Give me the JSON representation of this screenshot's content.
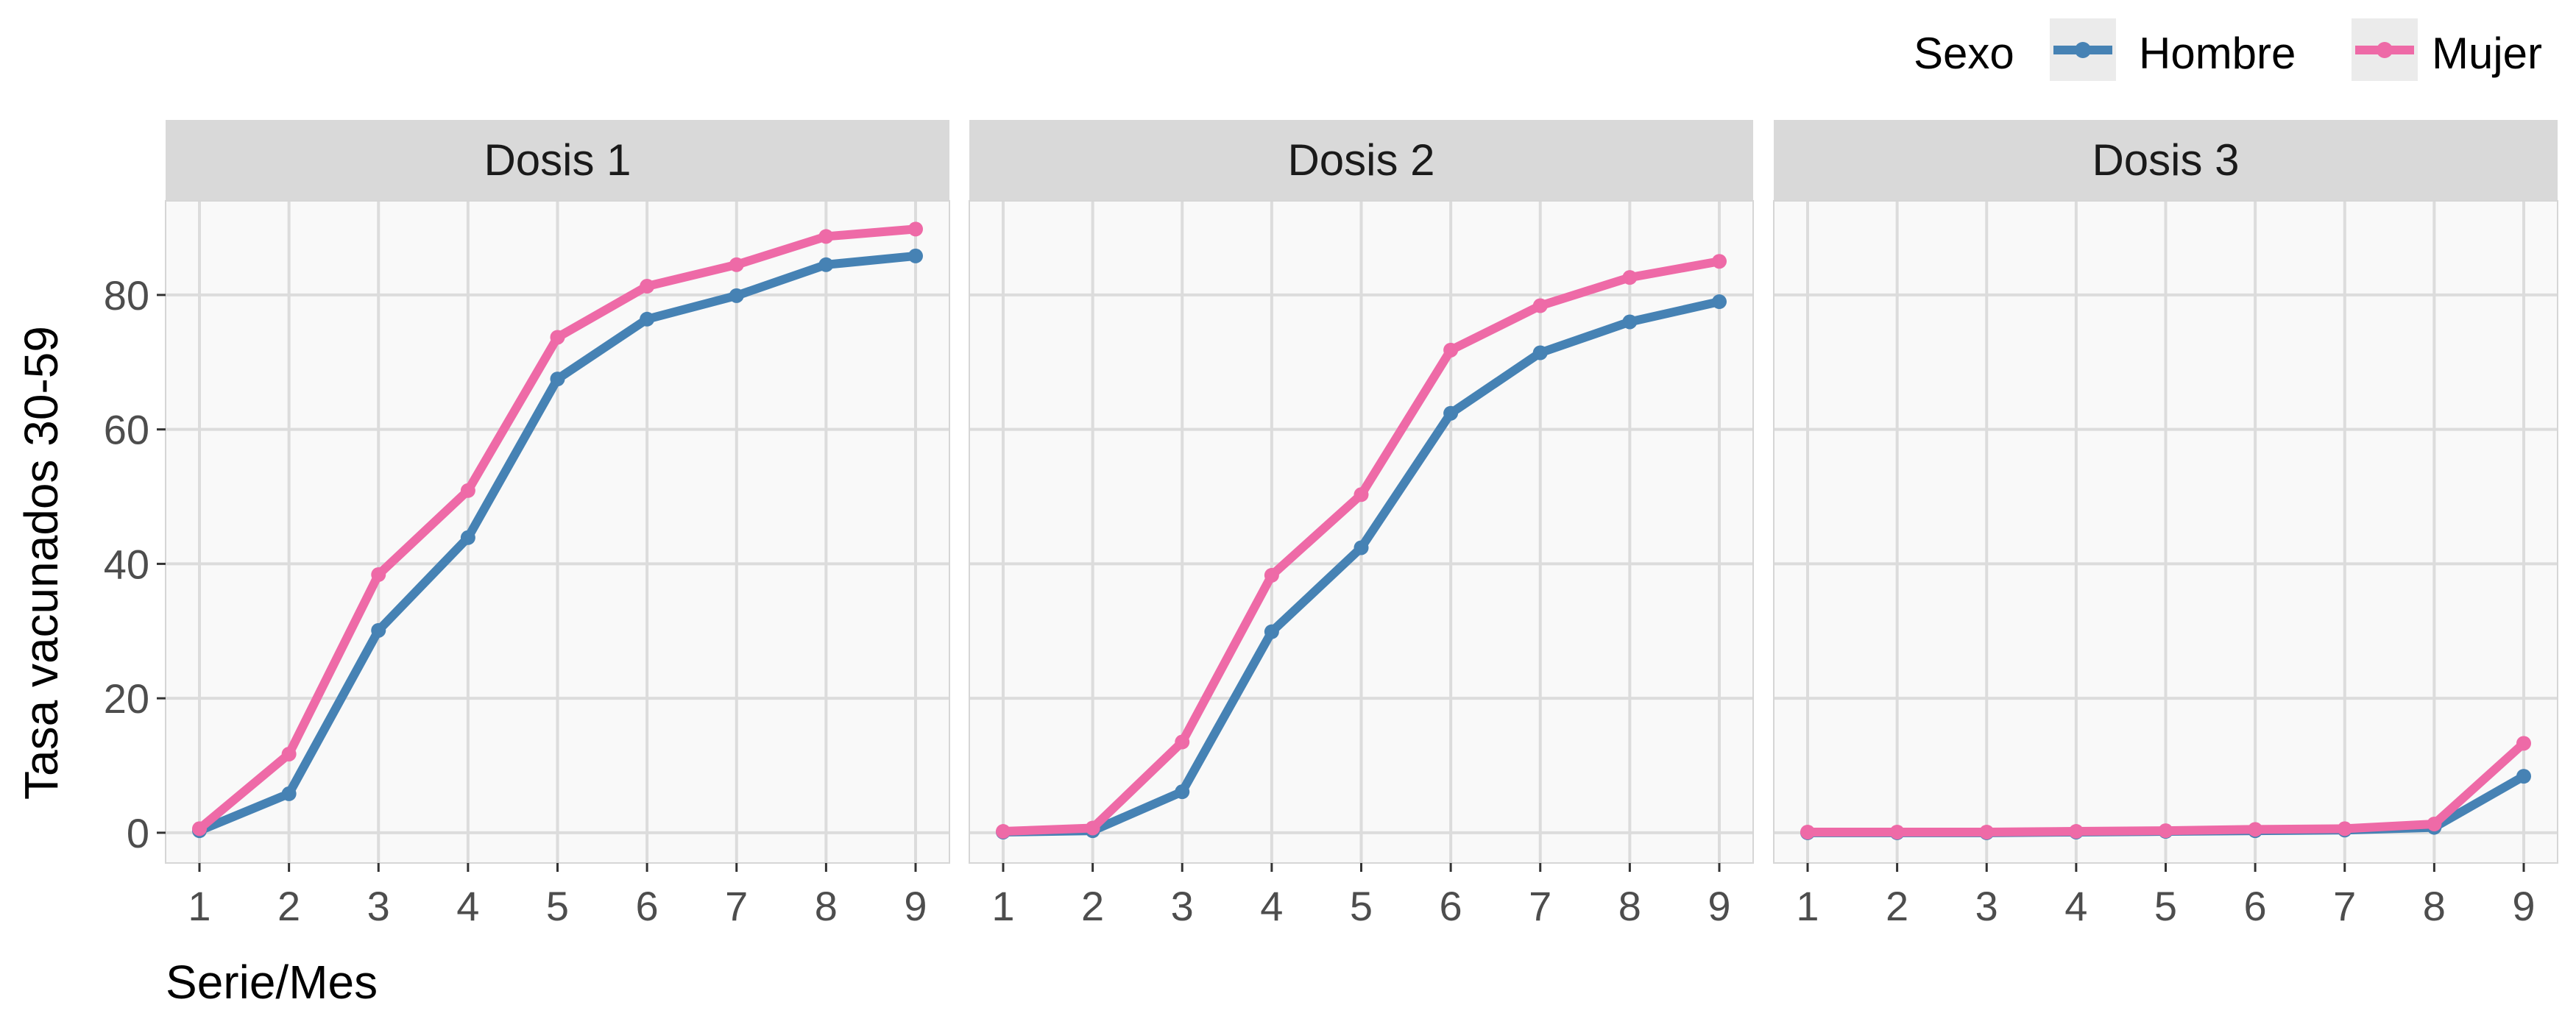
{
  "chart_data": {
    "type": "line",
    "facet_variable": "Dosis",
    "ylabel": "Tasa vacunados 30-59",
    "xlabel": "Serie/Mes",
    "x": [
      1,
      2,
      3,
      4,
      5,
      6,
      7,
      8,
      9
    ],
    "xticks": [
      "1",
      "2",
      "3",
      "4",
      "5",
      "6",
      "7",
      "8",
      "9"
    ],
    "ylim": [
      -4.5,
      94
    ],
    "yticks": [
      0,
      20,
      40,
      60,
      80
    ],
    "ytick_labels": [
      "0",
      "20",
      "40",
      "60",
      "80"
    ],
    "grid": true,
    "legend": {
      "title": "Sexo",
      "position": "top-right",
      "entries": [
        {
          "name": "Hombre",
          "color": "#4682b4"
        },
        {
          "name": "Mujer",
          "color": "#ee6aa7"
        }
      ]
    },
    "panels": [
      {
        "label": "Dosis 1",
        "series": [
          {
            "name": "Hombre",
            "color": "#4682b4",
            "values": [
              0.3,
              5.8,
              30.1,
              43.9,
              67.5,
              76.4,
              79.9,
              84.5,
              85.8
            ]
          },
          {
            "name": "Mujer",
            "color": "#ee6aa7",
            "values": [
              0.6,
              11.7,
              38.4,
              50.9,
              73.7,
              81.3,
              84.5,
              88.7,
              89.8
            ]
          }
        ]
      },
      {
        "label": "Dosis 2",
        "series": [
          {
            "name": "Hombre",
            "color": "#4682b4",
            "values": [
              0.1,
              0.3,
              6.1,
              29.9,
              42.4,
              62.4,
              71.4,
              76.0,
              79.0
            ]
          },
          {
            "name": "Mujer",
            "color": "#ee6aa7",
            "values": [
              0.2,
              0.7,
              13.5,
              38.3,
              50.3,
              71.8,
              78.4,
              82.6,
              85.0
            ]
          }
        ]
      },
      {
        "label": "Dosis 3",
        "series": [
          {
            "name": "Hombre",
            "color": "#4682b4",
            "values": [
              0.0,
              0.0,
              0.0,
              0.1,
              0.2,
              0.3,
              0.4,
              0.8,
              8.4
            ]
          },
          {
            "name": "Mujer",
            "color": "#ee6aa7",
            "values": [
              0.1,
              0.1,
              0.1,
              0.2,
              0.3,
              0.5,
              0.6,
              1.3,
              13.3
            ]
          }
        ]
      }
    ]
  }
}
